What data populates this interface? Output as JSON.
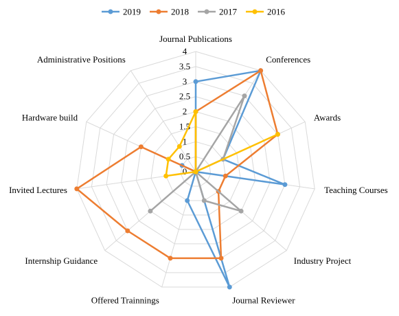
{
  "chart_data": {
    "type": "radar",
    "categories": [
      "Journal Publications",
      "Conferences",
      "Awards",
      "Teaching Courses",
      "Industry Project",
      "Journal Reviewer",
      "Offered Trainnings",
      "Internship Guidance",
      "Invited Lectures",
      "Hardware build",
      "Administrative Positions"
    ],
    "rlim": [
      0,
      4
    ],
    "ticks": [
      "0",
      "0.5",
      "1",
      "1.5",
      "2",
      "2.5",
      "3",
      "3.5",
      "4"
    ],
    "grid": true,
    "legend_position": "top",
    "series": [
      {
        "name": "2019",
        "color": "#5B9BD5",
        "values": [
          3,
          4,
          1,
          3,
          0,
          4,
          1,
          0,
          0,
          0.5,
          0
        ]
      },
      {
        "name": "2018",
        "color": "#ED7D31",
        "values": [
          2,
          4,
          3,
          1,
          1,
          3,
          3,
          3,
          4,
          2,
          0
        ]
      },
      {
        "name": "2017",
        "color": "#A5A5A5",
        "values": [
          0,
          3,
          1,
          0,
          2,
          1,
          0,
          2,
          0,
          0,
          0
        ]
      },
      {
        "name": "2016",
        "color": "#FFC000",
        "values": [
          2,
          0,
          3,
          0,
          0,
          0,
          0,
          0,
          1,
          1,
          1
        ]
      }
    ]
  }
}
